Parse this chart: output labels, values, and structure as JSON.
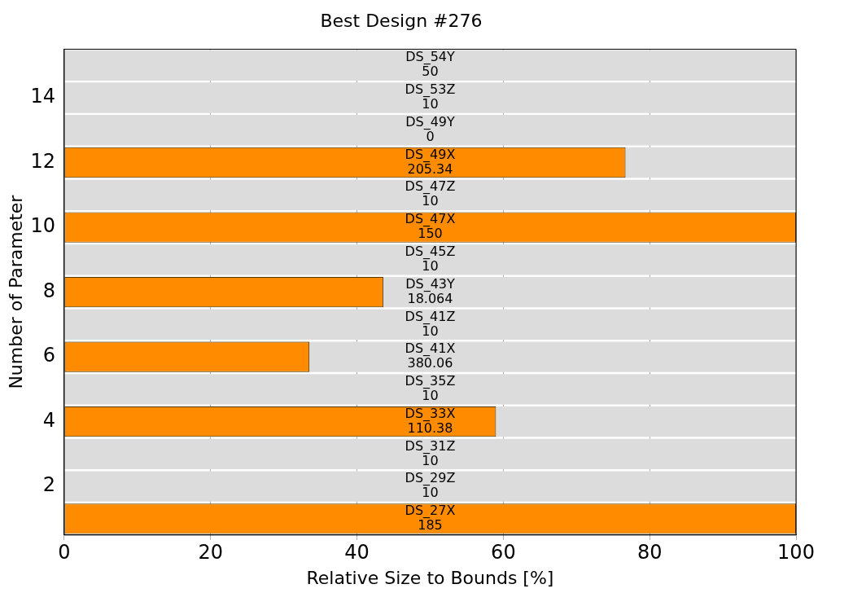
{
  "chart_data": {
    "type": "bar",
    "orientation": "horizontal",
    "title": "Best Design #276",
    "xlabel": "Relative Size to Bounds [%]",
    "ylabel": "Number of Parameter",
    "categories": [
      null,
      "14",
      null,
      "12",
      null,
      "10",
      null,
      "8",
      null,
      "6",
      null,
      "4",
      null,
      "2",
      null
    ],
    "series": [
      {
        "color": "#ff8c00",
        "values": [
          0,
          0,
          0,
          76.7,
          0,
          100,
          0,
          43.6,
          0,
          33.5,
          0,
          59.0,
          0,
          0,
          100
        ],
        "value_labels": [
          "DS_54Y\n50",
          "DS_53Z\n10",
          "DS_49Y\n0",
          "DS_49X\n205.34",
          "DS_47Z\n10",
          "DS_47X\n150",
          "DS_45Z\n10",
          "DS_43Y\n18.064",
          "DS_41Z\n10",
          "DS_41X\n380.06",
          "DS_35Z\n10",
          "DS_33X\n110.38",
          "DS_31Z\n10",
          "DS_29Z\n10",
          "DS_27X\n185"
        ]
      },
      {
        "color": "#dcdcdc",
        "values": [
          100,
          100,
          100,
          100,
          100,
          null,
          100,
          100,
          100,
          100,
          100,
          100,
          100,
          100,
          null
        ]
      }
    ],
    "xlim": [
      0,
      100
    ],
    "xticks": [
      0,
      20,
      40,
      60,
      80,
      100
    ],
    "grid": "x",
    "legend": false
  }
}
